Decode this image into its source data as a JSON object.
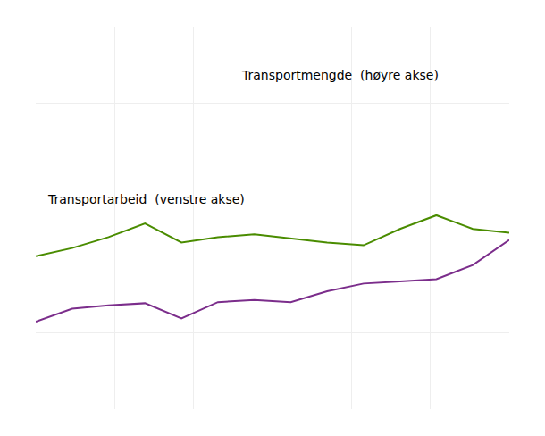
{
  "chart_data": {
    "type": "line",
    "x": [
      0,
      1,
      2,
      3,
      4,
      5,
      6,
      7,
      8,
      9,
      10,
      11,
      12,
      13
    ],
    "series": [
      {
        "color": "#7b2d8b",
        "values": [
          8.0,
          9.2,
          9.5,
          9.7,
          8.3,
          9.8,
          10.0,
          9.8,
          10.8,
          11.5,
          11.7,
          11.9,
          13.2,
          15.5
        ]
      },
      {
        "color": "#4a8c00",
        "axis": "y2",
        "values": [
          280,
          295,
          315,
          340,
          305,
          315,
          320,
          313,
          305,
          300,
          330,
          355,
          330,
          323
        ]
      }
    ],
    "annotations": [
      "Transportmengde  (høyre akse)",
      "Transportarbeid  (venstre akse)"
    ],
    "xlim": [
      0,
      13
    ],
    "xticks": [
      0,
      2.1666666666666665,
      4.333333333333333,
      6.5,
      8.666666666666666,
      10.833333333333332,
      13
    ],
    "ylim": [
      0,
      35
    ],
    "yticks": [
      0,
      7,
      14,
      21,
      28,
      35
    ],
    "y2lim": [
      0,
      700
    ],
    "y2ticks": [
      0,
      140,
      280,
      420,
      560,
      700
    ],
    "grid": true,
    "tick_labels": false
  }
}
